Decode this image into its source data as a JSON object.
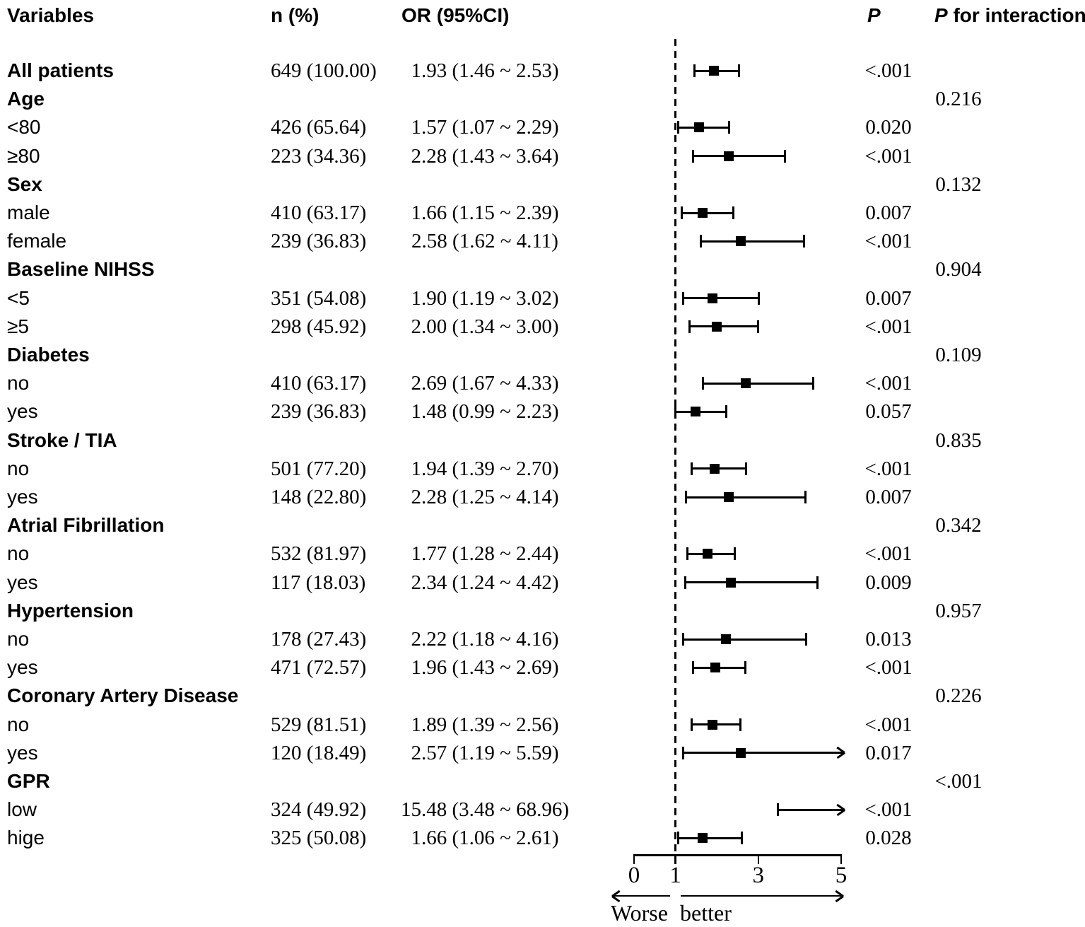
{
  "labels": {
    "p_italic": "P",
    "p_interaction_rest": " for interaction"
  },
  "colors": {
    "ink": "#000000",
    "background": "#ffffff"
  },
  "chart_data": {
    "type": "scatter",
    "subtype": "forest-plot",
    "columns": [
      "Variables",
      "n (%)",
      "OR (95%CI)",
      "P",
      "P for interaction"
    ],
    "xlim": [
      0,
      5
    ],
    "x_ticks": [
      0,
      1,
      3,
      5
    ],
    "reference_line": 1,
    "direction_labels": {
      "worse": "Worse",
      "better": "better"
    },
    "rows": [
      {
        "kind": "overall",
        "label": "All patients",
        "n": "649 (100.00)",
        "or_text": "1.93 (1.46 ~ 2.53)",
        "or": 1.93,
        "ci": [
          1.46,
          2.53
        ],
        "p": "<.001"
      },
      {
        "kind": "group",
        "label": "Age",
        "p_interaction": "0.216"
      },
      {
        "kind": "sub",
        "label": "<80",
        "n": "426 (65.64)",
        "or_text": "1.57 (1.07 ~ 2.29)",
        "or": 1.57,
        "ci": [
          1.07,
          2.29
        ],
        "p": "0.020"
      },
      {
        "kind": "sub",
        "label": "≥80",
        "n": "223 (34.36)",
        "or_text": "2.28 (1.43 ~ 3.64)",
        "or": 2.28,
        "ci": [
          1.43,
          3.64
        ],
        "p": "<.001"
      },
      {
        "kind": "group",
        "label": "Sex",
        "p_interaction": "0.132"
      },
      {
        "kind": "sub",
        "label": "male",
        "n": "410 (63.17)",
        "or_text": "1.66 (1.15 ~ 2.39)",
        "or": 1.66,
        "ci": [
          1.15,
          2.39
        ],
        "p": "0.007"
      },
      {
        "kind": "sub",
        "label": "female",
        "n": "239 (36.83)",
        "or_text": "2.58 (1.62 ~ 4.11)",
        "or": 2.58,
        "ci": [
          1.62,
          4.11
        ],
        "p": "<.001"
      },
      {
        "kind": "group",
        "label": "Baseline NIHSS",
        "p_interaction": "0.904"
      },
      {
        "kind": "sub",
        "label": "<5",
        "n": "351 (54.08)",
        "or_text": "1.90 (1.19 ~ 3.02)",
        "or": 1.9,
        "ci": [
          1.19,
          3.02
        ],
        "p": "0.007"
      },
      {
        "kind": "sub",
        "label": "≥5",
        "n": "298 (45.92)",
        "or_text": "2.00 (1.34 ~ 3.00)",
        "or": 2.0,
        "ci": [
          1.34,
          3.0
        ],
        "p": "<.001"
      },
      {
        "kind": "group",
        "label": "Diabetes",
        "p_interaction": "0.109"
      },
      {
        "kind": "sub",
        "label": "no",
        "n": "410 (63.17)",
        "or_text": "2.69 (1.67 ~ 4.33)",
        "or": 2.69,
        "ci": [
          1.67,
          4.33
        ],
        "p": "<.001"
      },
      {
        "kind": "sub",
        "label": "yes",
        "n": "239 (36.83)",
        "or_text": "1.48 (0.99 ~ 2.23)",
        "or": 1.48,
        "ci": [
          0.99,
          2.23
        ],
        "p": "0.057"
      },
      {
        "kind": "group",
        "label": "Stroke / TIA",
        "p_interaction": "0.835"
      },
      {
        "kind": "sub",
        "label": "no",
        "n": "501 (77.20)",
        "or_text": "1.94 (1.39 ~ 2.70)",
        "or": 1.94,
        "ci": [
          1.39,
          2.7
        ],
        "p": "<.001"
      },
      {
        "kind": "sub",
        "label": "yes",
        "n": "148 (22.80)",
        "or_text": "2.28 (1.25 ~ 4.14)",
        "or": 2.28,
        "ci": [
          1.25,
          4.14
        ],
        "p": "0.007"
      },
      {
        "kind": "group",
        "label": "Atrial Fibrillation",
        "p_interaction": "0.342"
      },
      {
        "kind": "sub",
        "label": "no",
        "n": "532 (81.97)",
        "or_text": "1.77 (1.28 ~ 2.44)",
        "or": 1.77,
        "ci": [
          1.28,
          2.44
        ],
        "p": "<.001"
      },
      {
        "kind": "sub",
        "label": "yes",
        "n": "117 (18.03)",
        "or_text": "2.34 (1.24 ~ 4.42)",
        "or": 2.34,
        "ci": [
          1.24,
          4.42
        ],
        "p": "0.009"
      },
      {
        "kind": "group",
        "label": "Hypertension",
        "p_interaction": "0.957"
      },
      {
        "kind": "sub",
        "label": "no",
        "n": "178 (27.43)",
        "or_text": "2.22 (1.18 ~ 4.16)",
        "or": 2.22,
        "ci": [
          1.18,
          4.16
        ],
        "p": "0.013"
      },
      {
        "kind": "sub",
        "label": "yes",
        "n": "471 (72.57)",
        "or_text": "1.96 (1.43 ~ 2.69)",
        "or": 1.96,
        "ci": [
          1.43,
          2.69
        ],
        "p": "<.001"
      },
      {
        "kind": "group",
        "label": "Coronary Artery Disease",
        "p_interaction": "0.226"
      },
      {
        "kind": "sub",
        "label": "no",
        "n": "529 (81.51)",
        "or_text": "1.89 (1.39 ~ 2.56)",
        "or": 1.89,
        "ci": [
          1.39,
          2.56
        ],
        "p": "<.001"
      },
      {
        "kind": "sub",
        "label": "yes",
        "n": "120 (18.49)",
        "or_text": "2.57 (1.19 ~ 5.59)",
        "or": 2.57,
        "ci": [
          1.19,
          5.59
        ],
        "p": "0.017"
      },
      {
        "kind": "group",
        "label": "GPR",
        "p_interaction": "<.001"
      },
      {
        "kind": "sub",
        "label": "low",
        "n": "324 (49.92)",
        "or_text": "15.48 (3.48 ~ 68.96)",
        "or": 15.48,
        "ci": [
          3.48,
          68.96
        ],
        "p": "<.001"
      },
      {
        "kind": "sub",
        "label": "hige",
        "n": "325 (50.08)",
        "or_text": "1.66 (1.06 ~ 2.61)",
        "or": 1.66,
        "ci": [
          1.06,
          2.61
        ],
        "p": "0.028"
      }
    ]
  }
}
